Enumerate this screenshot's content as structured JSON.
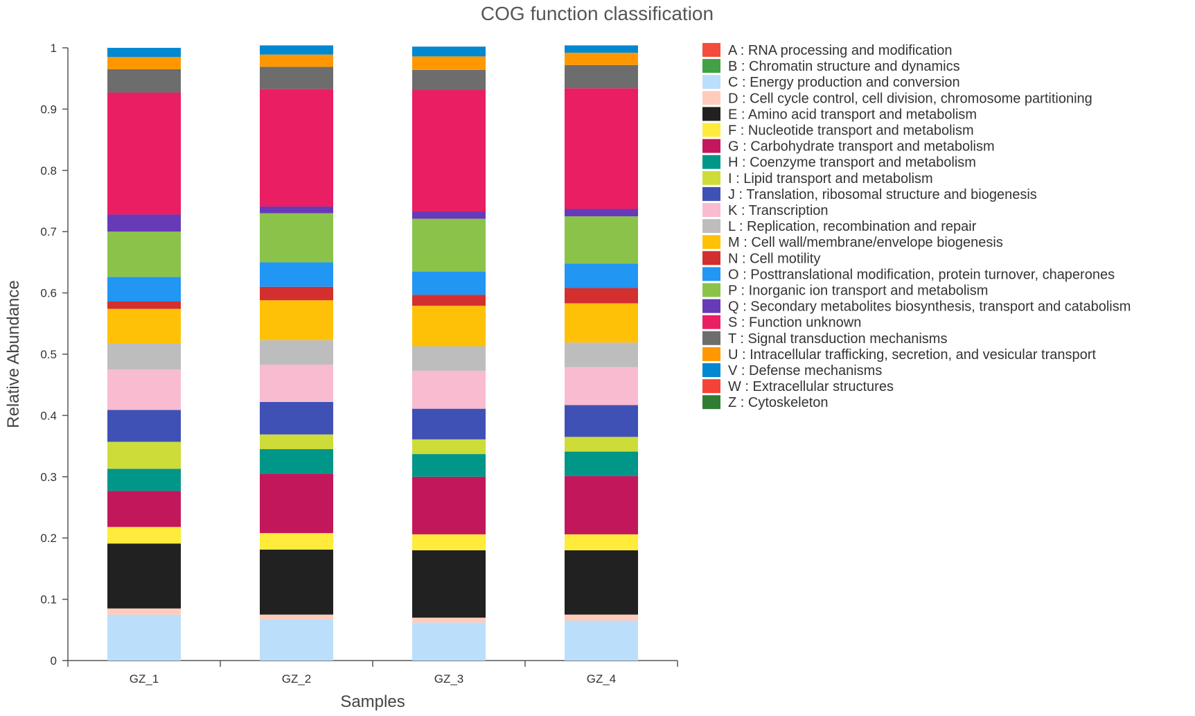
{
  "chart_data": {
    "type": "bar",
    "stacked": true,
    "title": "COG function classification",
    "xlabel": "Samples",
    "ylabel": "Relative Abundance",
    "ylim": [
      0,
      1
    ],
    "yticks": [
      "0",
      "0.1",
      "0.2",
      "0.3",
      "0.4",
      "0.5",
      "0.6",
      "0.7",
      "0.8",
      "0.9",
      "1"
    ],
    "ytick_values": [
      0,
      0.1,
      0.2,
      0.3,
      0.4,
      0.5,
      0.6,
      0.7,
      0.8,
      0.9,
      1.0
    ],
    "categories": [
      "GZ_1",
      "GZ_2",
      "GZ_3",
      "GZ_4"
    ],
    "legend_position": "right",
    "series": [
      {
        "code": "A",
        "label": "A : RNA processing and modification",
        "color": "#f44c3c",
        "values": [
          0.0,
          0.0,
          0.0,
          0.0
        ]
      },
      {
        "code": "B",
        "label": "B : Chromatin structure and dynamics",
        "color": "#43a047",
        "values": [
          0.0,
          0.0,
          0.0,
          0.0
        ]
      },
      {
        "code": "C",
        "label": "C : Energy production and conversion",
        "color": "#bbdefb",
        "values": [
          0.075,
          0.067,
          0.062,
          0.065
        ]
      },
      {
        "code": "D",
        "label": "D : Cell cycle control, cell division, chromosome partitioning",
        "color": "#ffccbc",
        "values": [
          0.01,
          0.008,
          0.008,
          0.01
        ]
      },
      {
        "code": "E",
        "label": "E : Amino acid transport and metabolism",
        "color": "#212121",
        "values": [
          0.106,
          0.106,
          0.11,
          0.105
        ]
      },
      {
        "code": "F",
        "label": "F : Nucleotide transport and metabolism",
        "color": "#ffeb3b",
        "values": [
          0.027,
          0.027,
          0.026,
          0.026
        ]
      },
      {
        "code": "G",
        "label": "G : Carbohydrate transport and metabolism",
        "color": "#c2185b",
        "values": [
          0.059,
          0.097,
          0.094,
          0.095
        ]
      },
      {
        "code": "H",
        "label": "H : Coenzyme transport and metabolism",
        "color": "#009688",
        "values": [
          0.036,
          0.04,
          0.037,
          0.04
        ]
      },
      {
        "code": "I",
        "label": "I : Lipid transport and metabolism",
        "color": "#cddc39",
        "values": [
          0.044,
          0.024,
          0.024,
          0.024
        ]
      },
      {
        "code": "J",
        "label": "J : Translation, ribosomal structure and biogenesis",
        "color": "#3f51b5",
        "values": [
          0.052,
          0.053,
          0.05,
          0.052
        ]
      },
      {
        "code": "K",
        "label": "K : Transcription",
        "color": "#f8bbd0",
        "values": [
          0.066,
          0.061,
          0.062,
          0.062
        ]
      },
      {
        "code": "L",
        "label": "L : Replication, recombination and repair",
        "color": "#bdbdbd",
        "values": [
          0.043,
          0.04,
          0.04,
          0.04
        ]
      },
      {
        "code": "M",
        "label": "M : Cell wall/membrane/envelope biogenesis",
        "color": "#ffc107",
        "values": [
          0.056,
          0.065,
          0.066,
          0.064
        ]
      },
      {
        "code": "N",
        "label": "N : Cell motility",
        "color": "#d32f2f",
        "values": [
          0.012,
          0.022,
          0.018,
          0.025
        ]
      },
      {
        "code": "O",
        "label": "O : Posttranslational modification, protein turnover, chaperones",
        "color": "#2196f3",
        "values": [
          0.04,
          0.04,
          0.038,
          0.04
        ]
      },
      {
        "code": "P",
        "label": "P : Inorganic ion transport and metabolism",
        "color": "#8bc34a",
        "values": [
          0.074,
          0.08,
          0.086,
          0.077
        ]
      },
      {
        "code": "Q",
        "label": "Q : Secondary metabolites biosynthesis, transport and catabolism",
        "color": "#673ab7",
        "values": [
          0.028,
          0.011,
          0.012,
          0.012
        ]
      },
      {
        "code": "S",
        "label": "S : Function unknown",
        "color": "#e91e63",
        "values": [
          0.199,
          0.192,
          0.198,
          0.197
        ]
      },
      {
        "code": "T",
        "label": "T : Signal transduction mechanisms",
        "color": "#6d6d6d",
        "values": [
          0.038,
          0.036,
          0.033,
          0.038
        ]
      },
      {
        "code": "U",
        "label": "U : Intracellular trafficking, secretion, and vesicular transport",
        "color": "#ff9800",
        "values": [
          0.02,
          0.02,
          0.022,
          0.02
        ]
      },
      {
        "code": "V",
        "label": "V : Defense mechanisms",
        "color": "#0288d1",
        "values": [
          0.015,
          0.015,
          0.016,
          0.012
        ]
      },
      {
        "code": "W",
        "label": "W : Extracellular structures",
        "color": "#f44336",
        "values": [
          0.0,
          0.0,
          0.0,
          0.0
        ]
      },
      {
        "code": "Z",
        "label": "Z : Cytoskeleton",
        "color": "#2e7d32",
        "values": [
          0.0,
          0.0,
          0.0,
          0.0
        ]
      }
    ]
  }
}
